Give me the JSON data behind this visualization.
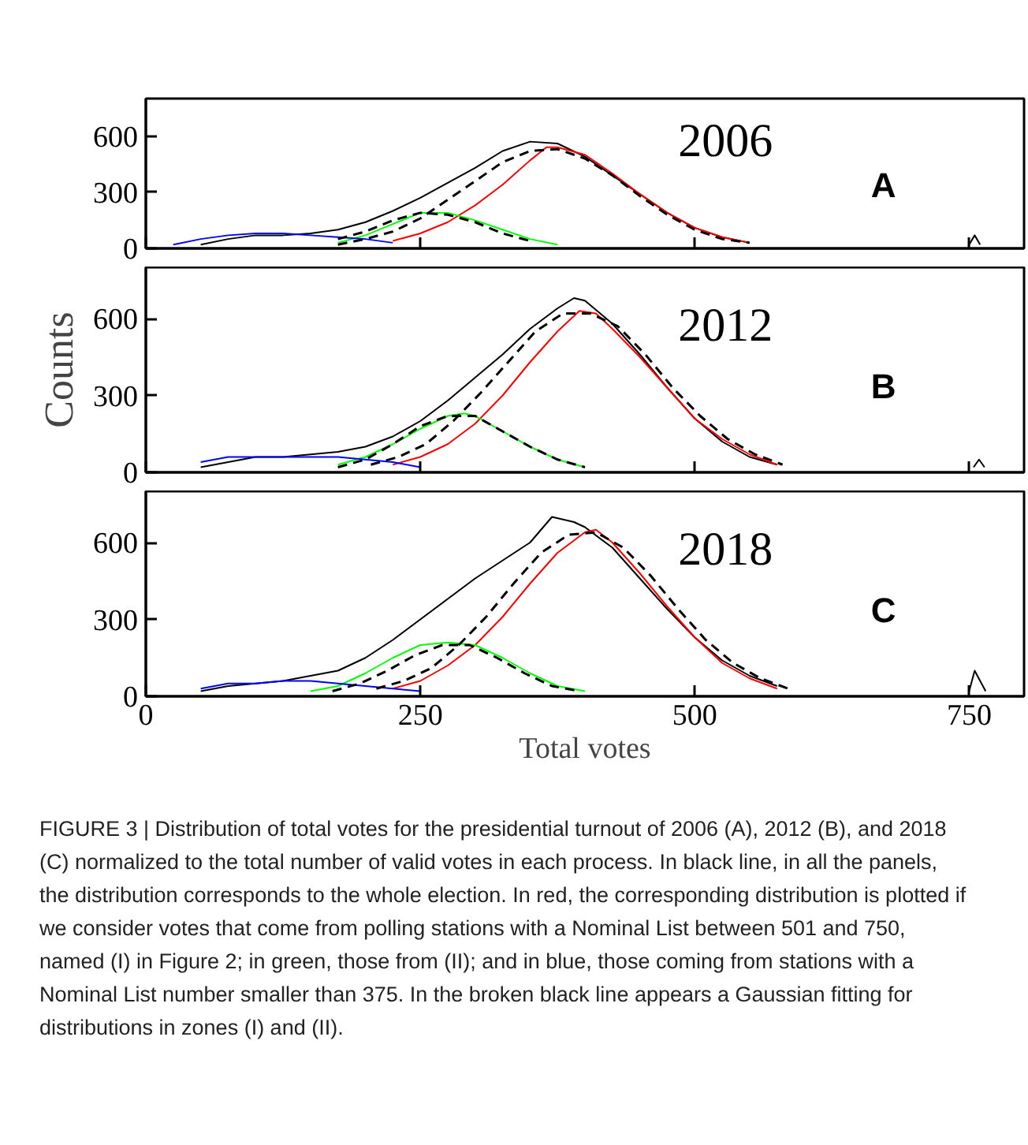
{
  "chart_data": [
    {
      "type": "line",
      "annotations": [
        "2006",
        "A"
      ],
      "xlim": [
        0,
        800
      ],
      "ylim": [
        0,
        800
      ],
      "xticks": [
        0,
        250,
        500,
        750
      ],
      "yticks": [
        0,
        300,
        600
      ],
      "tick_labels": "y",
      "grid": false,
      "series": [
        {
          "color": "#000000",
          "x": [
            50,
            75,
            100,
            125,
            150,
            175,
            200,
            225,
            250,
            275,
            300,
            325,
            350,
            375,
            400,
            425,
            450,
            475,
            500,
            525,
            550,
            650,
            750,
            755,
            760
          ],
          "values": [
            20,
            50,
            70,
            70,
            80,
            100,
            140,
            200,
            270,
            350,
            430,
            520,
            570,
            560,
            490,
            390,
            290,
            190,
            110,
            60,
            30,
            null,
            20,
            70,
            20
          ]
        },
        {
          "color": "#ff0000",
          "x": [
            225,
            250,
            275,
            300,
            325,
            350,
            365,
            375,
            400,
            425,
            450,
            475,
            500,
            525,
            550
          ],
          "values": [
            40,
            80,
            140,
            230,
            340,
            470,
            540,
            540,
            500,
            400,
            290,
            190,
            110,
            60,
            30
          ]
        },
        {
          "color": "#00ff00",
          "x": [
            175,
            200,
            225,
            250,
            275,
            300,
            325,
            350,
            375
          ],
          "values": [
            30,
            70,
            130,
            190,
            190,
            150,
            100,
            50,
            20
          ]
        },
        {
          "color": "#0000ff",
          "x": [
            25,
            50,
            75,
            100,
            125,
            150,
            175,
            200,
            225
          ],
          "values": [
            20,
            50,
            70,
            80,
            80,
            70,
            60,
            50,
            30
          ]
        },
        {
          "color": "#000000",
          "line_style": "dashed",
          "x": [
            175,
            200,
            225,
            250,
            275,
            300,
            325,
            350,
            375,
            400,
            425,
            450,
            475,
            500,
            525,
            550
          ],
          "values": [
            20,
            50,
            90,
            160,
            260,
            360,
            460,
            520,
            530,
            480,
            390,
            280,
            180,
            100,
            50,
            30
          ]
        },
        {
          "color": "#000000",
          "line_style": "dashed",
          "x": [
            175,
            200,
            225,
            250,
            275,
            300,
            325,
            350
          ],
          "values": [
            50,
            90,
            150,
            190,
            180,
            140,
            80,
            40
          ]
        }
      ]
    },
    {
      "type": "line",
      "annotations": [
        "2012",
        "B"
      ],
      "ylabel": "Counts",
      "xlim": [
        0,
        800
      ],
      "ylim": [
        0,
        800
      ],
      "xticks": [
        0,
        250,
        500,
        750
      ],
      "yticks": [
        0,
        300,
        600
      ],
      "tick_labels": "y",
      "grid": false,
      "series": [
        {
          "color": "#000000",
          "x": [
            50,
            75,
            100,
            125,
            150,
            175,
            200,
            225,
            250,
            275,
            300,
            325,
            350,
            375,
            390,
            400,
            425,
            450,
            475,
            500,
            525,
            550,
            575,
            650,
            754,
            759,
            764
          ],
          "values": [
            20,
            40,
            60,
            60,
            70,
            80,
            100,
            140,
            200,
            280,
            370,
            460,
            560,
            640,
            680,
            670,
            580,
            460,
            330,
            210,
            120,
            60,
            30,
            null,
            20,
            50,
            20
          ]
        },
        {
          "color": "#ff0000",
          "x": [
            225,
            250,
            275,
            300,
            325,
            350,
            375,
            395,
            410,
            425,
            450,
            475,
            500,
            525,
            550,
            575
          ],
          "values": [
            30,
            60,
            110,
            190,
            300,
            430,
            550,
            630,
            620,
            560,
            450,
            330,
            210,
            130,
            70,
            30
          ]
        },
        {
          "color": "#00ff00",
          "x": [
            175,
            200,
            225,
            250,
            275,
            290,
            300,
            325,
            350,
            375,
            400
          ],
          "values": [
            30,
            60,
            110,
            170,
            220,
            230,
            220,
            160,
            100,
            50,
            20
          ]
        },
        {
          "color": "#0000ff",
          "x": [
            50,
            75,
            100,
            125,
            150,
            175,
            200,
            225,
            250
          ],
          "values": [
            40,
            60,
            60,
            60,
            60,
            60,
            50,
            40,
            20
          ]
        },
        {
          "color": "#000000",
          "line_style": "dashed",
          "x": [
            205,
            230,
            255,
            280,
            305,
            330,
            355,
            380,
            405,
            430,
            455,
            480,
            505,
            530,
            555,
            580
          ],
          "values": [
            30,
            60,
            110,
            200,
            310,
            430,
            550,
            620,
            620,
            570,
            460,
            330,
            220,
            130,
            70,
            30
          ]
        },
        {
          "color": "#000000",
          "line_style": "dashed",
          "x": [
            175,
            200,
            225,
            250,
            275,
            300,
            325,
            350,
            375,
            400
          ],
          "values": [
            20,
            50,
            110,
            180,
            220,
            220,
            160,
            100,
            50,
            20
          ]
        }
      ]
    },
    {
      "type": "line",
      "annotations": [
        "2018",
        "C"
      ],
      "xlabel": "Total votes",
      "xlim": [
        0,
        800
      ],
      "ylim": [
        0,
        800
      ],
      "xticks": [
        0,
        250,
        500,
        750
      ],
      "yticks": [
        0,
        300,
        600
      ],
      "grid": false,
      "series": [
        {
          "color": "#000000",
          "x": [
            50,
            75,
            100,
            125,
            150,
            175,
            200,
            225,
            250,
            275,
            300,
            325,
            350,
            370,
            390,
            400,
            425,
            450,
            475,
            500,
            525,
            550,
            575,
            650,
            750,
            755,
            765
          ],
          "values": [
            20,
            40,
            50,
            60,
            80,
            100,
            150,
            220,
            300,
            380,
            460,
            530,
            600,
            700,
            680,
            660,
            580,
            460,
            340,
            230,
            140,
            80,
            40,
            null,
            20,
            100,
            20
          ]
        },
        {
          "color": "#ff0000",
          "x": [
            225,
            250,
            275,
            300,
            325,
            350,
            375,
            400,
            410,
            425,
            450,
            475,
            500,
            525,
            550,
            575
          ],
          "values": [
            30,
            60,
            120,
            200,
            310,
            440,
            560,
            640,
            650,
            600,
            480,
            350,
            230,
            130,
            70,
            30
          ]
        },
        {
          "color": "#00ff00",
          "x": [
            150,
            175,
            200,
            225,
            250,
            275,
            300,
            325,
            350,
            375,
            400
          ],
          "values": [
            20,
            40,
            90,
            150,
            200,
            210,
            200,
            150,
            90,
            40,
            20
          ]
        },
        {
          "color": "#0000ff",
          "x": [
            50,
            75,
            100,
            125,
            150,
            175,
            200,
            225,
            250
          ],
          "values": [
            30,
            50,
            50,
            60,
            60,
            50,
            40,
            30,
            20
          ]
        },
        {
          "color": "#000000",
          "line_style": "dashed",
          "x": [
            210,
            235,
            260,
            285,
            310,
            335,
            360,
            385,
            410,
            435,
            460,
            485,
            510,
            535,
            560,
            585
          ],
          "values": [
            30,
            60,
            110,
            200,
            310,
            440,
            560,
            630,
            640,
            580,
            470,
            340,
            220,
            130,
            70,
            30
          ]
        },
        {
          "color": "#000000",
          "line_style": "dashed",
          "x": [
            170,
            195,
            220,
            245,
            270,
            295,
            320,
            345,
            370,
            395
          ],
          "values": [
            20,
            50,
            100,
            160,
            200,
            200,
            150,
            90,
            40,
            20
          ]
        }
      ]
    },
    {
      "type": "other",
      "annotations": [
        "FIGURE 3 | Distribution of total votes for the presidential turnout of 2006 (A), 2012 (B), and 2018 (C) normalized to the total number of valid votes in each process. In black line, in all the panels, the distribution corresponds to the whole election. In red, the corresponding distribution is plotted if we consider votes that come from polling stations with a Nominal List between 501 and 750, named (I) in Figure 2; in green, those from (II); and in blue, those coming from stations with a Nominal List number smaller than 375. In the broken black line appears a Gaussian fitting for distributions in zones (I) and (II)."
      ]
    }
  ]
}
